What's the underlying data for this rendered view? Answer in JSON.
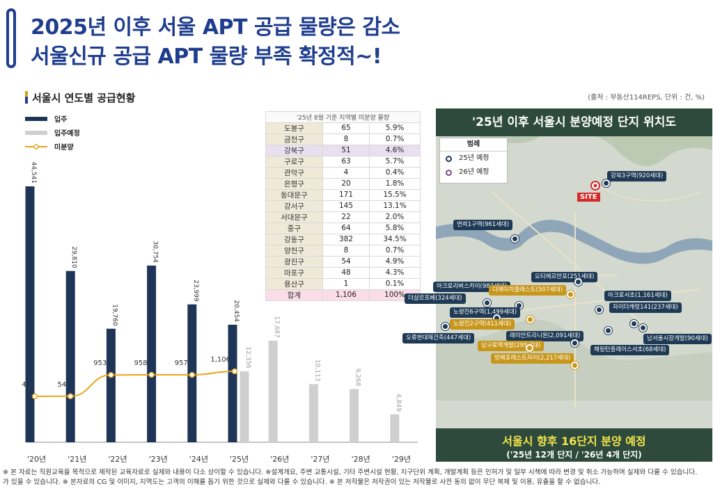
{
  "header": {
    "title_line1": "2025년 이후 서울 APT 공급 물량은 감소",
    "title_line2": "서울신규 공급 APT 물량 부족 확정적~!"
  },
  "section": {
    "title": "서울시 연도별 공급현황",
    "source": "(출처 : 부동산114REPS, 단위 : 건, %)"
  },
  "legend": {
    "move_in": "입주",
    "planned": "입주예정",
    "unsold": "미분양"
  },
  "colors": {
    "move_in": "#1e3557",
    "planned": "#cfcfcf",
    "unsold": "#e6a51e",
    "title": "#1f3d8e"
  },
  "chart_data": {
    "type": "bar",
    "categories": [
      "'20년",
      "'21년",
      "'22년",
      "'23년",
      "'24년",
      "'25년",
      "'26년",
      "'27년",
      "'28년",
      "'29년"
    ],
    "series": [
      {
        "name": "입주",
        "type": "bar",
        "values": [
          44541,
          29810,
          19760,
          30754,
          23999,
          20454,
          null,
          null,
          null,
          null
        ],
        "labels": [
          "44,541",
          "29,810",
          "19,760",
          "30,754",
          "23,999",
          "20,454",
          "",
          "",
          "",
          ""
        ]
      },
      {
        "name": "입주예정",
        "type": "bar",
        "values": [
          null,
          null,
          null,
          null,
          null,
          12356,
          17687,
          10113,
          9268,
          4849
        ],
        "labels": [
          "",
          "",
          "",
          "",
          "",
          "12,356",
          "17,687",
          "10,113",
          "9,268",
          "4,849"
        ]
      },
      {
        "name": "미분양",
        "type": "line",
        "values": [
          49,
          54,
          953,
          958,
          957,
          1106,
          null,
          null,
          null,
          null
        ],
        "labels": [
          "49",
          "54",
          "953",
          "958",
          "957",
          "1,106",
          "",
          "",
          "",
          ""
        ]
      }
    ]
  },
  "table": {
    "caption": "'25년 8월 기준 지역별 미분양 물량",
    "rows": [
      {
        "district": "도봉구",
        "count": "65",
        "pct": "5.9%",
        "hl": false
      },
      {
        "district": "금천구",
        "count": "8",
        "pct": "0.7%",
        "hl": false
      },
      {
        "district": "강북구",
        "count": "51",
        "pct": "4.6%",
        "hl": true
      },
      {
        "district": "구로구",
        "count": "63",
        "pct": "5.7%",
        "hl": false
      },
      {
        "district": "관악구",
        "count": "4",
        "pct": "0.4%",
        "hl": false
      },
      {
        "district": "은평구",
        "count": "20",
        "pct": "1.8%",
        "hl": false
      },
      {
        "district": "동대문구",
        "count": "171",
        "pct": "15.5%",
        "hl": false
      },
      {
        "district": "강서구",
        "count": "145",
        "pct": "13.1%",
        "hl": false
      },
      {
        "district": "서대문구",
        "count": "22",
        "pct": "2.0%",
        "hl": false
      },
      {
        "district": "중구",
        "count": "64",
        "pct": "5.8%",
        "hl": false
      },
      {
        "district": "강동구",
        "count": "382",
        "pct": "34.5%",
        "hl": false
      },
      {
        "district": "양천구",
        "count": "8",
        "pct": "0.7%",
        "hl": false
      },
      {
        "district": "광진구",
        "count": "54",
        "pct": "4.9%",
        "hl": false
      },
      {
        "district": "마포구",
        "count": "48",
        "pct": "4.3%",
        "hl": false
      },
      {
        "district": "용산구",
        "count": "1",
        "pct": "0.1%",
        "hl": false
      }
    ],
    "total": {
      "district": "합계",
      "count": "1,106",
      "pct": "100%"
    }
  },
  "map": {
    "title": "'25년 이후 서울시 분양예정 단지 위치도",
    "legend_title": "범례",
    "legend_25": "25년 예정",
    "legend_26": "26년 예정",
    "site_label": "SITE",
    "markers": [
      {
        "label": "강북3구역(920세대)",
        "year": "25"
      },
      {
        "label": "연희1구역(961세대)",
        "year": "25"
      },
      {
        "label": "오티에르반포(251세대)",
        "year": "25"
      },
      {
        "label": "아크로리버스카이(987세대)",
        "year": "25"
      },
      {
        "label": "디에이치클래스트(507세대)",
        "year": "26"
      },
      {
        "label": "더샵르프베(324세대)",
        "year": "25"
      },
      {
        "label": "아크로서초(1,161세대)",
        "year": "25"
      },
      {
        "label": "노량진6구역(1,499세대)",
        "year": "25"
      },
      {
        "label": "자이더캐럿141(237세대)",
        "year": "25"
      },
      {
        "label": "노량진2구역(411세대)",
        "year": "26"
      },
      {
        "label": "남서울시장개발(90세대)",
        "year": "25"
      },
      {
        "label": "래미안트리니원(2,091세대)",
        "year": "25"
      },
      {
        "label": "오류현대재건축(447세대)",
        "year": "25"
      },
      {
        "label": "남구로역개발(299세대)",
        "year": "26"
      },
      {
        "label": "해링턴플레이스서초(68세대)",
        "year": "25"
      },
      {
        "label": "방배포레스트자이(2,217세대)",
        "year": "26"
      }
    ],
    "footer_main": "서울시 향후 16단지 분양 예정",
    "footer_sub": "('25년 12개 단지 / '26년 4개 단지)"
  },
  "footnote": {
    "line1": "※ 본 자료는 직원교육을 목적으로 제작된 교육자료로 실제와 내용이 다소 상이할 수 있습니다. ※설계개요, 주변 교통시설, 기타 주변시설 현황, 지구단위 계획, 개발계획 등은 인허가 및 일부 시책에 따라 변경 및 취소 가능하며 실제와 다를 수 있습니다.",
    "line2": "가 있을 수 있습니다. ※ 본자료의 CG 및 이미지, 지역도는 고객의 이해를 돕기 위한 것으로 실제와 다를 수 있습니다. ※ 본 저작물은 저작권이 있는 저작물로 사전 동의 없이 무단 복제 및 이용, 유출을 할 수 없습니다."
  }
}
